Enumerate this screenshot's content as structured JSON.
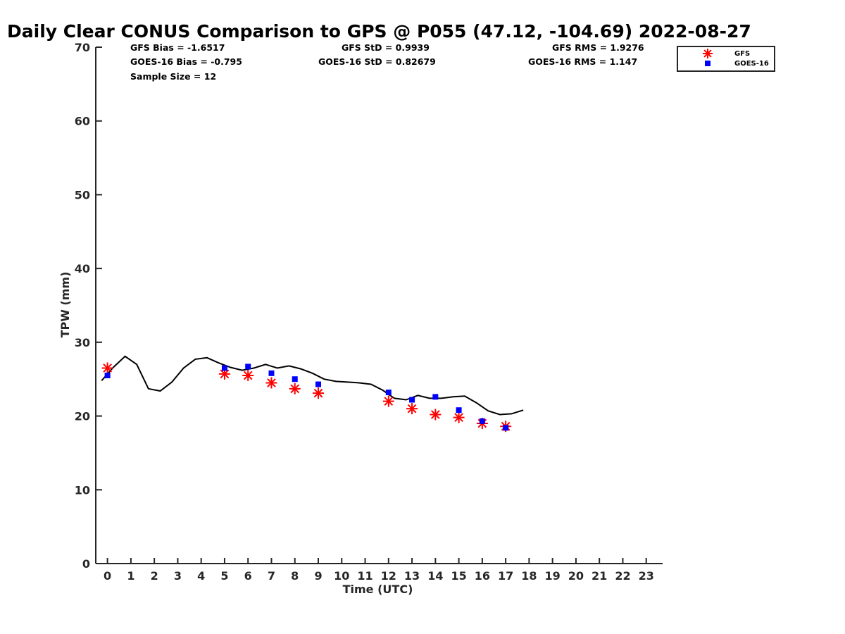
{
  "title": "Daily Clear CONUS Comparison to GPS @ P055 (47.12, -104.69) 2022-08-27",
  "stats": {
    "gfs_bias": "GFS Bias = -1.6517",
    "gfs_std": "GFS StD = 0.9939",
    "gfs_rms": "GFS RMS = 1.9276",
    "goes_bias": "GOES-16 Bias = -0.795",
    "goes_std": "GOES-16 StD = 0.82679",
    "goes_rms": "GOES-16 RMS = 1.147",
    "sample_size": "Sample Size = 12"
  },
  "chart_data": {
    "type": "scatter",
    "xlabel": "Time (UTC)",
    "ylabel": "TPW (mm)",
    "xlim": [
      -0.5,
      23.7
    ],
    "ylim": [
      0,
      70
    ],
    "xticks": [
      0,
      1,
      2,
      3,
      4,
      5,
      6,
      7,
      8,
      9,
      10,
      11,
      12,
      13,
      14,
      15,
      16,
      17,
      18,
      19,
      20,
      21,
      22,
      23
    ],
    "yticks": [
      0,
      10,
      20,
      30,
      40,
      50,
      60,
      70
    ],
    "grid": false,
    "legend_position": "top-right",
    "colors": {
      "gfs": "#ff0000",
      "goes": "#0000ff",
      "gps": "#000000"
    },
    "series": [
      {
        "name": "GFS",
        "marker": "asterisk",
        "x": [
          0,
          5,
          6,
          7,
          8,
          9,
          12,
          13,
          14,
          15,
          16,
          17
        ],
        "y": [
          26.5,
          25.7,
          25.5,
          24.5,
          23.7,
          23.1,
          22.0,
          21.0,
          20.2,
          19.8,
          19.0,
          18.6
        ]
      },
      {
        "name": "GOES-16",
        "marker": "square",
        "x": [
          0,
          5,
          6,
          7,
          8,
          9,
          12,
          13,
          14,
          15,
          16,
          17
        ],
        "y": [
          25.5,
          26.5,
          26.7,
          25.8,
          25.0,
          24.3,
          23.2,
          22.2,
          22.6,
          20.8,
          19.3,
          18.4
        ]
      },
      {
        "marker": "line",
        "x": [
          -0.25,
          0.25,
          0.75,
          1.25,
          1.75,
          2.25,
          2.75,
          3.25,
          3.75,
          4.25,
          4.75,
          5.25,
          5.75,
          6.25,
          6.75,
          7.25,
          7.75,
          8.25,
          8.75,
          9.25,
          9.75,
          10.25,
          10.75,
          11.25,
          11.75,
          12.25,
          12.75,
          13.25,
          13.75,
          14.25,
          14.75,
          15.25,
          15.75,
          16.25,
          16.75,
          17.25,
          17.75
        ],
        "y": [
          24.8,
          26.6,
          28.1,
          27.0,
          23.7,
          23.4,
          24.6,
          26.5,
          27.7,
          27.9,
          27.2,
          26.6,
          26.2,
          26.5,
          27.0,
          26.5,
          26.8,
          26.4,
          25.8,
          25.0,
          24.7,
          24.6,
          24.5,
          24.3,
          23.5,
          22.4,
          22.2,
          22.8,
          22.4,
          22.4,
          22.6,
          22.7,
          21.8,
          20.7,
          20.2,
          20.3,
          20.8
        ]
      }
    ]
  }
}
